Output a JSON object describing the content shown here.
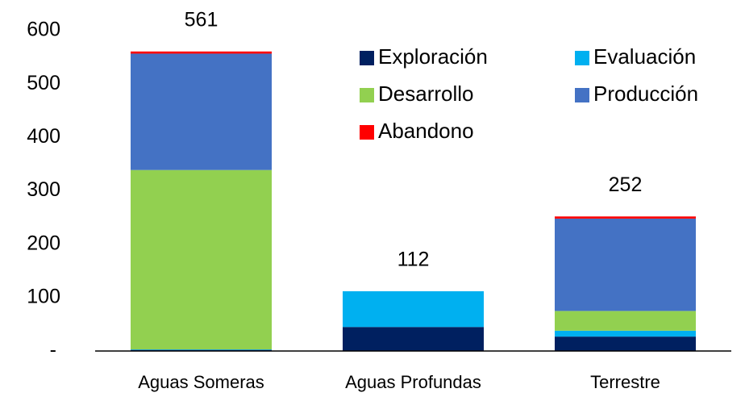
{
  "chart_data": {
    "type": "stacked_bar",
    "categories": [
      "Aguas Someras",
      "Aguas Profundas",
      "Terrestre"
    ],
    "series": [
      {
        "name": "Exploración",
        "color": "#002060",
        "values": [
          2,
          45,
          27
        ]
      },
      {
        "name": "Evaluación",
        "color": "#00b0f0",
        "values": [
          1,
          67,
          11
        ]
      },
      {
        "name": "Desarrollo",
        "color": "#92d050",
        "values": [
          336,
          0,
          37
        ]
      },
      {
        "name": "Producción",
        "color": "#4472c4",
        "values": [
          218,
          0,
          173
        ]
      },
      {
        "name": "Abandono",
        "color": "#ff0000",
        "values": [
          4,
          0,
          4
        ]
      }
    ],
    "totals": [
      561,
      112,
      252
    ],
    "ylim": [
      0,
      600
    ],
    "yticks": [
      {
        "value": 0,
        "label": "-"
      },
      100,
      200,
      300,
      400,
      500,
      600
    ],
    "grid": false,
    "legend": "top-right"
  }
}
